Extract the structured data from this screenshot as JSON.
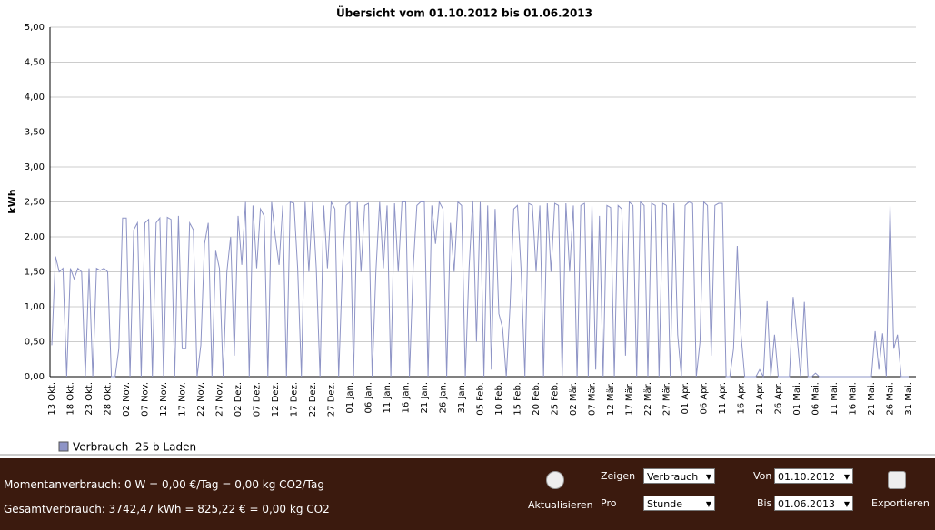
{
  "chart_data": {
    "type": "line",
    "title": "Übersicht vom 01.10.2012 bis 01.06.2013",
    "y_label": "kWh",
    "categories": [
      "13 Okt.",
      null,
      null,
      null,
      null,
      "18 Okt.",
      null,
      null,
      null,
      null,
      "23 Okt.",
      null,
      null,
      null,
      null,
      "28 Okt.",
      null,
      null,
      null,
      null,
      "02 Nov.",
      null,
      null,
      null,
      null,
      "07 Nov.",
      null,
      null,
      null,
      null,
      "12 Nov.",
      null,
      null,
      null,
      null,
      "17 Nov.",
      null,
      null,
      null,
      null,
      "22 Nov.",
      null,
      null,
      null,
      null,
      "27 Nov.",
      null,
      null,
      null,
      null,
      "02 Dez.",
      null,
      null,
      null,
      null,
      "07 Dez.",
      null,
      null,
      null,
      null,
      "12 Dez.",
      null,
      null,
      null,
      null,
      "17 Dez.",
      null,
      null,
      null,
      null,
      "22 Dez.",
      null,
      null,
      null,
      null,
      "27 Dez.",
      null,
      null,
      null,
      null,
      "01 Jan.",
      null,
      null,
      null,
      null,
      "06 Jan.",
      null,
      null,
      null,
      null,
      "11 Jan.",
      null,
      null,
      null,
      null,
      "16 Jan.",
      null,
      null,
      null,
      null,
      "21 Jan.",
      null,
      null,
      null,
      null,
      "26 Jan.",
      null,
      null,
      null,
      null,
      "31 Jan.",
      null,
      null,
      null,
      null,
      "05 Feb.",
      null,
      null,
      null,
      null,
      "10 Feb.",
      null,
      null,
      null,
      null,
      "15 Feb.",
      null,
      null,
      null,
      null,
      "20 Feb.",
      null,
      null,
      null,
      null,
      "25 Feb.",
      null,
      null,
      null,
      null,
      "02 Mär.",
      null,
      null,
      null,
      null,
      "07 Mär.",
      null,
      null,
      null,
      null,
      "12 Mär.",
      null,
      null,
      null,
      null,
      "17 Mär.",
      null,
      null,
      null,
      null,
      "22 Mär.",
      null,
      null,
      null,
      null,
      "27 Mär.",
      null,
      null,
      null,
      null,
      "01 Apr.",
      null,
      null,
      null,
      null,
      "06 Apr.",
      null,
      null,
      null,
      null,
      "11 Apr.",
      null,
      null,
      null,
      null,
      "16 Apr.",
      null,
      null,
      null,
      null,
      "21 Apr.",
      null,
      null,
      null,
      null,
      "26 Apr.",
      null,
      null,
      null,
      null,
      "01 Mai.",
      null,
      null,
      null,
      null,
      "06 Mai.",
      null,
      null,
      null,
      null,
      "11 Mai.",
      null,
      null,
      null,
      null,
      "16 Mai.",
      null,
      null,
      null,
      null,
      "21 Mai.",
      null,
      null,
      null,
      null,
      "26 Mai.",
      null,
      null,
      null,
      null,
      "31 Mai."
    ],
    "series": [
      {
        "name": "Verbrauch  25 b Laden",
        "color": "#8e94c6",
        "values": [
          0.45,
          1.72,
          1.5,
          1.55,
          0,
          1.55,
          1.4,
          1.55,
          1.5,
          0,
          1.55,
          0,
          1.55,
          1.52,
          1.55,
          1.5,
          0,
          0,
          0.4,
          2.27,
          2.27,
          0,
          2.1,
          2.2,
          0,
          2.2,
          2.25,
          0,
          2.2,
          2.27,
          0,
          2.28,
          2.25,
          0,
          2.3,
          0.4,
          0.4,
          2.2,
          2.1,
          0,
          0.45,
          1.9,
          2.2,
          0,
          1.8,
          1.55,
          0,
          1.5,
          2.0,
          0.3,
          2.3,
          1.6,
          2.5,
          0,
          2.45,
          1.55,
          2.4,
          2.3,
          0,
          2.5,
          2.0,
          1.6,
          2.45,
          0,
          2.5,
          2.48,
          1.55,
          0,
          2.5,
          1.5,
          2.5,
          1.55,
          0,
          2.45,
          1.55,
          2.5,
          2.4,
          0,
          1.55,
          2.45,
          2.5,
          0,
          2.5,
          1.5,
          2.45,
          2.48,
          0,
          1.5,
          2.5,
          1.55,
          2.45,
          0,
          2.48,
          1.5,
          2.5,
          2.5,
          0,
          1.55,
          2.45,
          2.5,
          2.5,
          0,
          2.45,
          1.9,
          2.5,
          2.4,
          0,
          2.2,
          1.5,
          2.5,
          2.45,
          0,
          1.55,
          2.52,
          0.5,
          2.5,
          0,
          2.45,
          0.1,
          2.4,
          0.9,
          0.7,
          0,
          1.0,
          2.4,
          2.45,
          1.5,
          0,
          2.48,
          2.45,
          1.5,
          2.45,
          0,
          2.48,
          1.5,
          2.48,
          2.45,
          0,
          2.48,
          1.5,
          2.45,
          0,
          2.45,
          2.48,
          0,
          2.45,
          0.1,
          2.3,
          0,
          2.45,
          2.42,
          0,
          2.45,
          2.4,
          0.3,
          2.5,
          2.45,
          0,
          2.5,
          2.45,
          0,
          2.48,
          2.45,
          0,
          2.48,
          2.45,
          0,
          2.48,
          0.6,
          0,
          2.45,
          2.5,
          2.48,
          0,
          0.5,
          2.5,
          2.45,
          0.3,
          2.45,
          2.48,
          2.48,
          0,
          0,
          0.4,
          1.87,
          0.6,
          0,
          0,
          0,
          0,
          0.1,
          0,
          1.08,
          0,
          0.6,
          0,
          0,
          0,
          0,
          1.14,
          0.6,
          0,
          1.07,
          0,
          0,
          0.05,
          0,
          0,
          0,
          0,
          0,
          0,
          0,
          0,
          0,
          0,
          0,
          0,
          0,
          0,
          0,
          0.65,
          0.1,
          0.62,
          0,
          2.45,
          0.4,
          0.6,
          0,
          0,
          0
        ]
      }
    ],
    "ylim": [
      0,
      5
    ],
    "yticks": [
      {
        "value": 0,
        "label": "0,00"
      },
      {
        "value": 0.5,
        "label": "0,50"
      },
      {
        "value": 1,
        "label": "1,00"
      },
      {
        "value": 1.5,
        "label": "1,50"
      },
      {
        "value": 2,
        "label": "2,00"
      },
      {
        "value": 2.5,
        "label": "2,50"
      },
      {
        "value": 3,
        "label": "3,00"
      },
      {
        "value": 3.5,
        "label": "3,50"
      },
      {
        "value": 4,
        "label": "4,00"
      },
      {
        "value": 4.5,
        "label": "4,50"
      },
      {
        "value": 5,
        "label": "5,00"
      }
    ],
    "grid": true,
    "legend": "bottom-left"
  },
  "footer": {
    "current": "Momentanverbrauch: 0 W = 0,00 €/Tag = 0,00 kg CO2/Tag",
    "total": "Gesamtverbrauch: 3742,47 kWh = 825,22 € = 0,00 kg CO2",
    "refresh": "Aktualisieren",
    "show_label": "Zeigen",
    "show_value": "Verbrauch",
    "per_label": "Pro",
    "per_value": "Stunde",
    "from_label": "Von",
    "from_value": "01.10.2012",
    "to_label": "Bis",
    "to_value": "01.06.2013",
    "export": "Exportieren"
  }
}
